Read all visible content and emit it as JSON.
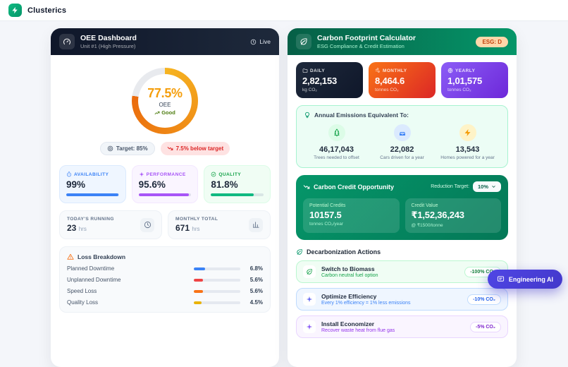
{
  "header": {
    "brand": "Clusterics"
  },
  "colors": {
    "gauge_start": "#f6b421",
    "gauge_end": "#ea6a0d",
    "gauge_track": "#e8eaee",
    "availability": "#3b82f6",
    "performance": "#a855f7",
    "quality": "#10b981",
    "brand_green": "#059669",
    "fab_indigo": "#4f46e5"
  },
  "oee": {
    "title": "OEE Dashboard",
    "subtitle": "Unit #1 (High Pressure)",
    "live_label": "Live",
    "gauge": {
      "value": "77.5%",
      "value_pct": 77.5,
      "label": "OEE",
      "status": "Good",
      "target_label": "Target: 85%",
      "delta_label": "7.5% below target"
    },
    "metrics": [
      {
        "label": "AVAILABILITY",
        "value": "99%",
        "pct": 99,
        "color": "#3b82f6"
      },
      {
        "label": "PERFORMANCE",
        "value": "95.6%",
        "pct": 95.6,
        "color": "#a855f7"
      },
      {
        "label": "QUALITY",
        "value": "81.8%",
        "pct": 81.8,
        "color": "#10b981"
      }
    ],
    "stats": [
      {
        "label": "TODAY'S RUNNING",
        "value": "23",
        "unit": "hrs"
      },
      {
        "label": "MONTHLY TOTAL",
        "value": "671",
        "unit": "hrs"
      }
    ],
    "loss_breakdown": {
      "title": "Loss Breakdown",
      "rows": [
        {
          "label": "Planned Downtime",
          "value": "6.8%",
          "pct": 6.8,
          "color": "#3b82f6"
        },
        {
          "label": "Unplanned Downtime",
          "value": "5.6%",
          "pct": 5.6,
          "color": "#ef4444"
        },
        {
          "label": "Speed Loss",
          "value": "5.6%",
          "pct": 5.6,
          "color": "#f97316"
        },
        {
          "label": "Quality Loss",
          "value": "4.5%",
          "pct": 4.5,
          "color": "#eab308"
        }
      ]
    }
  },
  "carbon": {
    "title": "Carbon Footprint Calculator",
    "subtitle": "ESG Compliance & Credit Estimation",
    "esg_badge": "ESG: D",
    "emissions": [
      {
        "label": "DAILY",
        "value": "2,82,153",
        "unit": "kg CO₂"
      },
      {
        "label": "MONTHLY",
        "value": "8,464.6",
        "unit": "tonnes CO₂"
      },
      {
        "label": "YEARLY",
        "value": "1,01,575",
        "unit": "tonnes CO₂"
      }
    ],
    "equivalent": {
      "title": "Annual Emissions Equivalent To:",
      "items": [
        {
          "value": "46,17,043",
          "label": "Trees needed to offset"
        },
        {
          "value": "22,082",
          "label": "Cars driven for a year"
        },
        {
          "value": "13,543",
          "label": "Homes powered for a year"
        }
      ]
    },
    "credit": {
      "title": "Carbon Credit Opportunity",
      "reduction_label": "Reduction Target:",
      "reduction_value": "10%",
      "potential_label": "Potential Credits",
      "potential_value": "10157.5",
      "potential_unit": "tonnes CO₂/year",
      "value_label": "Credit Value",
      "value_amount": "₹1,52,36,243",
      "value_rate": "@ ₹1500/tonne"
    },
    "actions": {
      "title": "Decarbonization Actions",
      "items": [
        {
          "title": "Switch to Biomass",
          "subtitle": "Carbon neutral fuel option",
          "badge": "-100% CO₂"
        },
        {
          "title": "Optimize Efficiency",
          "subtitle": "Every 1% efficiency = 1% less emissions",
          "badge": "-10% CO₂"
        },
        {
          "title": "Install Economizer",
          "subtitle": "Recover waste heat from flue gas",
          "badge": "-5% CO₂"
        }
      ]
    }
  },
  "fab": {
    "label": "Engineering AI"
  }
}
